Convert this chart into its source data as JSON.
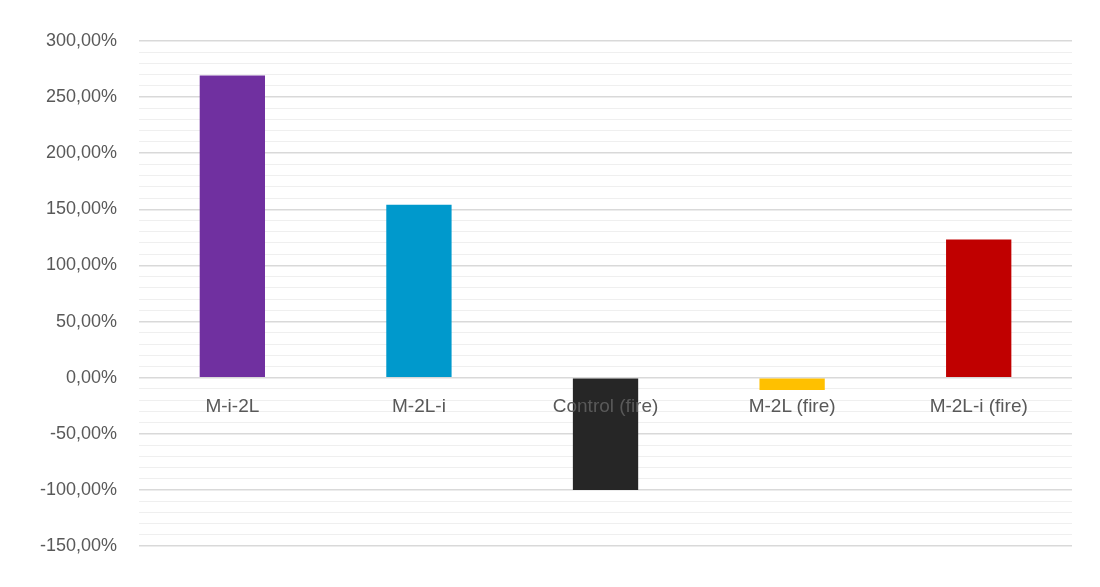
{
  "chart_data": {
    "type": "bar",
    "categories": [
      "M-i-2L",
      "M-2L-i",
      "Control (fire)",
      "M-2L (fire)",
      "M-2L-i (fire)"
    ],
    "values": [
      269,
      154,
      -100,
      -11,
      123
    ],
    "colors": [
      "#7030a0",
      "#0099cc",
      "#262626",
      "#ffc000",
      "#c00000"
    ],
    "ylim": [
      -150,
      300
    ],
    "yticks": [
      {
        "value": -150,
        "label": "-150,00%"
      },
      {
        "value": -140,
        "label": null
      },
      {
        "value": -130,
        "label": null
      },
      {
        "value": -120,
        "label": null
      },
      {
        "value": -110,
        "label": null
      },
      {
        "value": -100,
        "label": "-100,00%"
      },
      {
        "value": -90,
        "label": null
      },
      {
        "value": -80,
        "label": null
      },
      {
        "value": -70,
        "label": null
      },
      {
        "value": -60,
        "label": null
      },
      {
        "value": -50,
        "label": "-50,00%"
      },
      {
        "value": -40,
        "label": null
      },
      {
        "value": -30,
        "label": null
      },
      {
        "value": -20,
        "label": null
      },
      {
        "value": -10,
        "label": null
      },
      {
        "value": 0,
        "label": "0,00%"
      },
      {
        "value": 10,
        "label": null
      },
      {
        "value": 20,
        "label": null
      },
      {
        "value": 30,
        "label": null
      },
      {
        "value": 40,
        "label": null
      },
      {
        "value": 50,
        "label": "50,00%"
      },
      {
        "value": 60,
        "label": null
      },
      {
        "value": 70,
        "label": null
      },
      {
        "value": 80,
        "label": null
      },
      {
        "value": 90,
        "label": null
      },
      {
        "value": 100,
        "label": "100,00%"
      },
      {
        "value": 110,
        "label": null
      },
      {
        "value": 120,
        "label": null
      },
      {
        "value": 130,
        "label": null
      },
      {
        "value": 140,
        "label": null
      },
      {
        "value": 150,
        "label": "150,00%"
      },
      {
        "value": 160,
        "label": null
      },
      {
        "value": 170,
        "label": null
      },
      {
        "value": 180,
        "label": null
      },
      {
        "value": 190,
        "label": null
      },
      {
        "value": 200,
        "label": "200,00%"
      },
      {
        "value": 210,
        "label": null
      },
      {
        "value": 220,
        "label": null
      },
      {
        "value": 230,
        "label": null
      },
      {
        "value": 240,
        "label": null
      },
      {
        "value": 250,
        "label": "250,00%"
      },
      {
        "value": 260,
        "label": null
      },
      {
        "value": 270,
        "label": null
      },
      {
        "value": 280,
        "label": null
      },
      {
        "value": 290,
        "label": null
      },
      {
        "value": 300,
        "label": "300,00%"
      }
    ],
    "grid": "y",
    "legend": false
  }
}
